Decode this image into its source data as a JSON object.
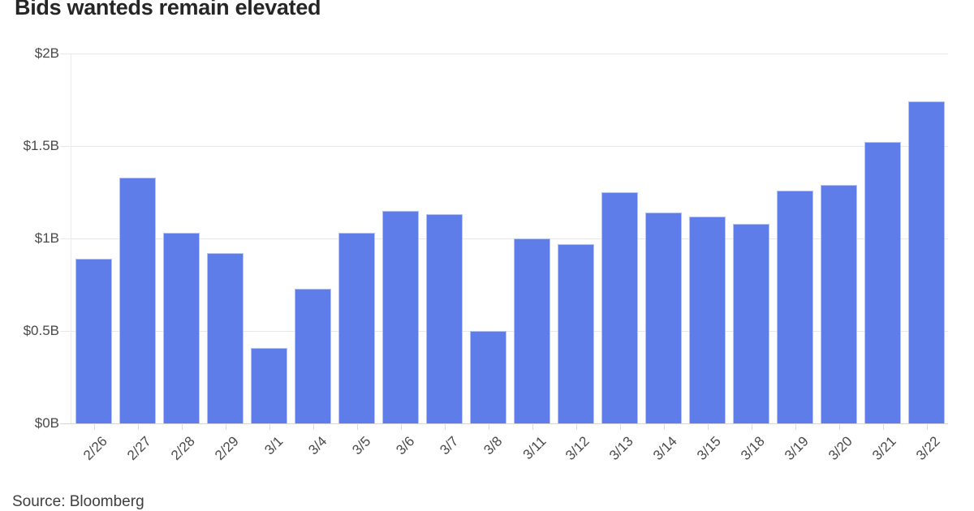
{
  "title": "Bids wanteds remain elevated",
  "source": "Source: Bloomberg",
  "colors": {
    "bar": "#5f7de9",
    "bar_edge": "#b5c3f2",
    "gridline": "#e8e8e8",
    "baseline": "#d6d6d6",
    "axis_text": "#4a4a4a",
    "title_text": "#262626"
  },
  "chart_data": {
    "type": "bar",
    "title": "Bids wanteds remain elevated",
    "xlabel": "",
    "ylabel": "",
    "categories": [
      "2/26",
      "2/27",
      "2/28",
      "2/29",
      "3/1",
      "3/4",
      "3/5",
      "3/6",
      "3/7",
      "3/8",
      "3/11",
      "3/12",
      "3/13",
      "3/14",
      "3/15",
      "3/18",
      "3/19",
      "3/20",
      "3/21",
      "3/22"
    ],
    "values": [
      0.89,
      1.33,
      1.03,
      0.92,
      0.41,
      0.73,
      1.03,
      1.15,
      1.13,
      0.5,
      1.0,
      0.97,
      1.25,
      1.14,
      1.12,
      1.08,
      1.26,
      1.29,
      1.52,
      1.74
    ],
    "ylim": [
      0,
      2
    ],
    "yticks": [
      {
        "value": 0,
        "label": "$0B"
      },
      {
        "value": 0.5,
        "label": "$0.5B"
      },
      {
        "value": 1,
        "label": "$1B"
      },
      {
        "value": 1.5,
        "label": "$1.5B"
      },
      {
        "value": 2,
        "label": "$2B"
      }
    ],
    "grid": true,
    "legend": null,
    "annotation": "Source: Bloomberg"
  }
}
